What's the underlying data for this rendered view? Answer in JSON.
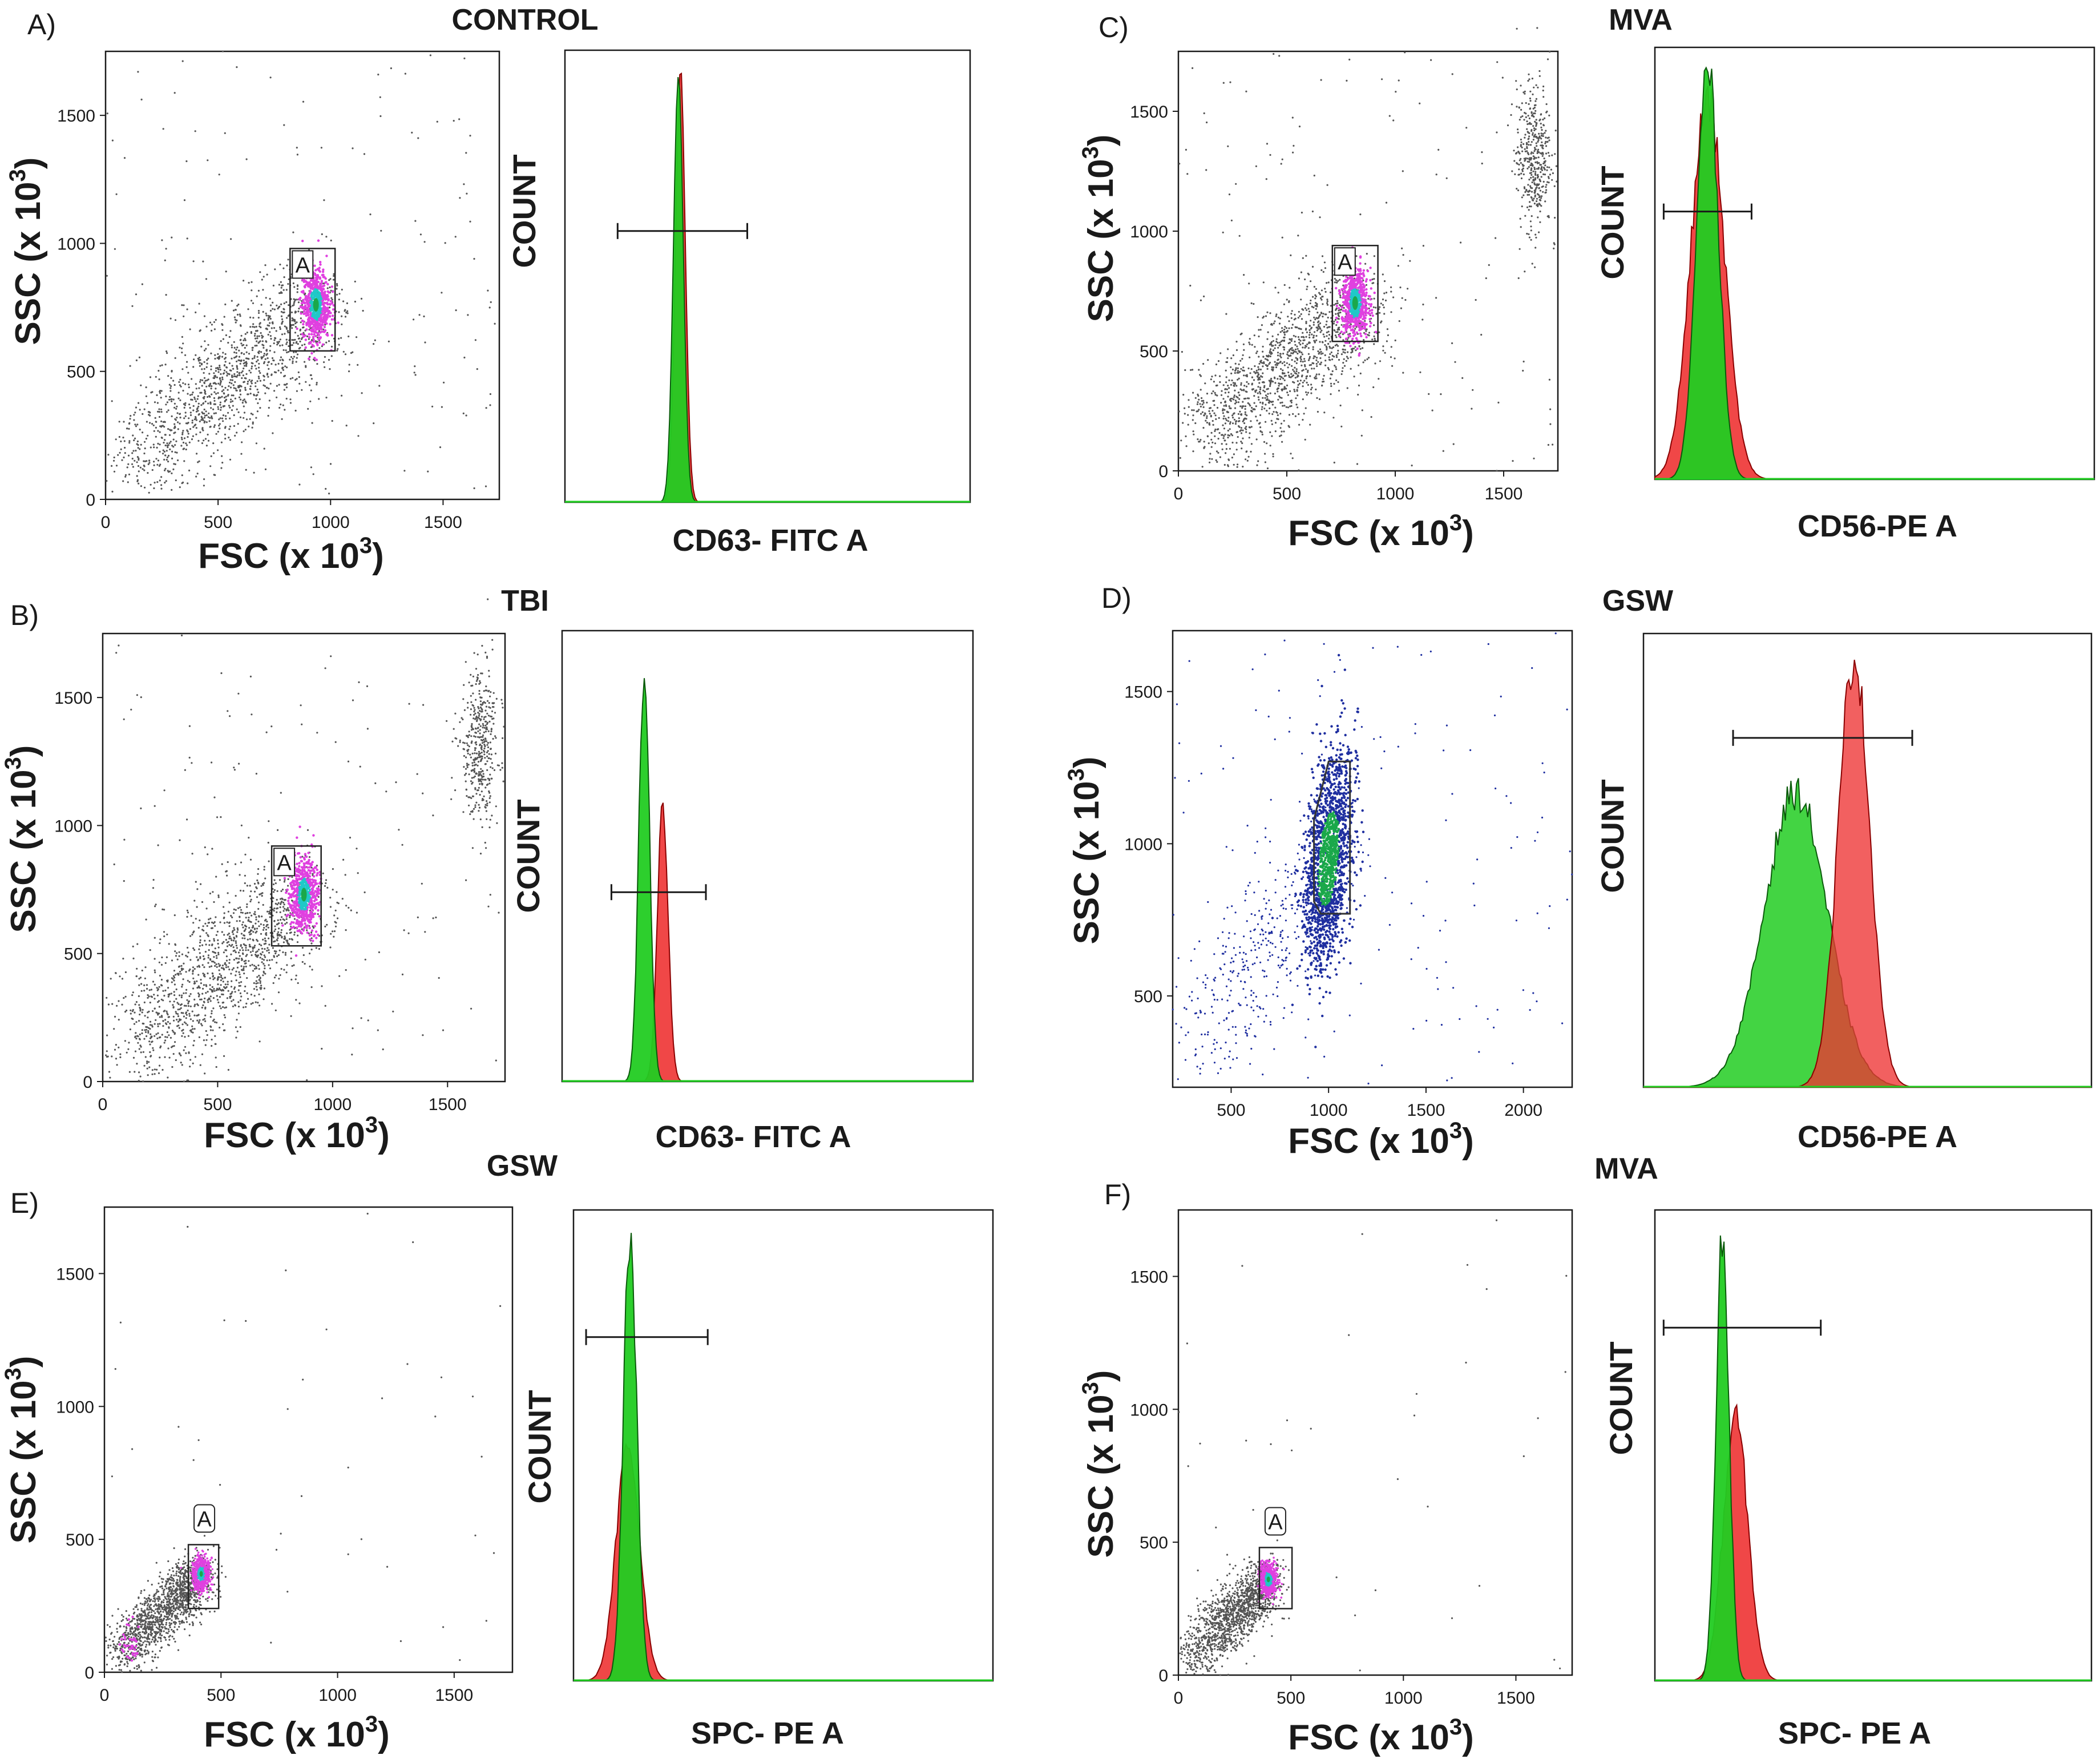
{
  "colors": {
    "background": "#ffffff",
    "axis": "#1a1a1a",
    "scatter_gray": "#555555",
    "scatter_blue": "#1f2fa0",
    "density_magenta": "#e040e0",
    "density_cyan": "#20c8c8",
    "density_green": "#1aa84a",
    "hist_green": "#22cc22",
    "hist_red": "#ee3333",
    "hist_overlap": "#d2691e"
  },
  "panels": [
    {
      "id": "A",
      "letter": "A)",
      "title": "CONTROL",
      "scatter": {
        "xlabel": "FSC (x 10",
        "ylabel": "SSC (x 10",
        "sup": "3",
        "xlim": [
          0,
          1750
        ],
        "ylim": [
          0,
          1750
        ],
        "xticks": [
          "0",
          "500",
          "1000",
          "1500"
        ],
        "yticks": [
          "0",
          "500",
          "1000",
          "1500"
        ],
        "gate": {
          "label": "A",
          "x": [
            820,
            1020
          ],
          "y": [
            580,
            980
          ]
        },
        "population_center": [
          935,
          760
        ],
        "point_color": "gray",
        "extra_cluster": false
      },
      "histogram": {
        "xlabel": "CD63- FITC A",
        "ylabel": "COUNT",
        "marker": {
          "x": [
            0.13,
            0.45
          ],
          "y": 0.6
        },
        "green": {
          "center": 0.28,
          "width": 0.012,
          "height": 0.95
        },
        "red": {
          "center": 0.285,
          "width": 0.012,
          "height": 0.96
        },
        "green_on_top": true
      }
    },
    {
      "id": "B",
      "letter": "B)",
      "title": "TBI",
      "scatter": {
        "xlabel": "FSC (x 10",
        "ylabel": "SSC (x 10",
        "sup": "3",
        "xlim": [
          0,
          1750
        ],
        "ylim": [
          0,
          1750
        ],
        "xticks": [
          "0",
          "500",
          "1000",
          "1500"
        ],
        "yticks": [
          "0",
          "500",
          "1000",
          "1500"
        ],
        "gate": {
          "label": "A",
          "x": [
            735,
            950
          ],
          "y": [
            530,
            920
          ]
        },
        "population_center": [
          875,
          730
        ],
        "point_color": "gray",
        "extra_cluster": true
      },
      "histogram": {
        "xlabel": "CD63- FITC A",
        "ylabel": "COUNT",
        "marker": {
          "x": [
            0.12,
            0.35
          ],
          "y": 0.42
        },
        "green": {
          "center": 0.2,
          "width": 0.013,
          "height": 0.93
        },
        "red": {
          "center": 0.245,
          "width": 0.013,
          "height": 0.62
        },
        "green_on_top": true
      }
    },
    {
      "id": "C",
      "letter": "C)",
      "title": "MVA",
      "scatter": {
        "xlabel": "FSC (x 10",
        "ylabel": "SSC (x 10",
        "sup": "3",
        "xlim": [
          0,
          1750
        ],
        "ylim": [
          0,
          1750
        ],
        "xticks": [
          "0",
          "500",
          "1000",
          "1500"
        ],
        "yticks": [
          "0",
          "500",
          "1000",
          "1500"
        ],
        "gate": {
          "label": "A",
          "x": [
            710,
            920
          ],
          "y": [
            540,
            940
          ]
        },
        "population_center": [
          815,
          700
        ],
        "point_color": "gray",
        "extra_cluster": true
      },
      "histogram": {
        "xlabel": "CD56-PE A",
        "ylabel": "COUNT",
        "marker": {
          "x": [
            0.02,
            0.22
          ],
          "y": 0.62
        },
        "green": {
          "center": 0.12,
          "width": 0.025,
          "height": 0.96
        },
        "red": {
          "center": 0.12,
          "width": 0.038,
          "height": 0.88
        },
        "green_on_top": true
      }
    },
    {
      "id": "D",
      "letter": "D)",
      "title": "GSW",
      "scatter": {
        "xlabel": "FSC (x 10",
        "ylabel": "SSC (x 10",
        "sup": "3",
        "xlim": [
          200,
          2250
        ],
        "ylim": [
          200,
          1700
        ],
        "xticks": [
          "500",
          "1000",
          "1500",
          "2000"
        ],
        "yticks": [
          "500",
          "1000",
          "1500"
        ],
        "gate": {
          "label": "",
          "polygon": [
            [
              925,
              1080
            ],
            [
              1000,
              1270
            ],
            [
              1110,
              1270
            ],
            [
              1110,
              770
            ],
            [
              960,
              770
            ],
            [
              925,
              810
            ]
          ]
        },
        "population_center": [
          1000,
          950
        ],
        "point_color": "blue",
        "extra_cluster": false
      },
      "histogram": {
        "xlabel": "CD56-PE A",
        "ylabel": "COUNT",
        "marker": {
          "x": [
            0.2,
            0.6
          ],
          "y": 0.77
        },
        "green": {
          "center": 0.34,
          "width": 0.07,
          "height": 0.65
        },
        "red": {
          "center": 0.47,
          "width": 0.035,
          "height": 0.95
        },
        "green_on_top": false
      }
    },
    {
      "id": "E",
      "letter": "E)",
      "title": "GSW",
      "scatter": {
        "xlabel": "FSC (x 10",
        "ylabel": "SSC (x 10",
        "sup": "3",
        "xlim": [
          0,
          1750
        ],
        "ylim": [
          0,
          1750
        ],
        "xticks": [
          "0",
          "500",
          "1000",
          "1500"
        ],
        "yticks": [
          "0",
          "500",
          "1000",
          "1500"
        ],
        "gate": {
          "label": "A",
          "x": [
            360,
            490
          ],
          "y": [
            240,
            480
          ]
        },
        "population_center": [
          415,
          370
        ],
        "point_color": "gray",
        "extra_cluster": false
      },
      "histogram": {
        "xlabel": "SPC- PE A",
        "ylabel": "COUNT",
        "marker": {
          "x": [
            0.03,
            0.32
          ],
          "y": 0.73
        },
        "green": {
          "center": 0.135,
          "width": 0.016,
          "height": 0.95
        },
        "red": {
          "center": 0.13,
          "width": 0.028,
          "height": 0.5
        },
        "green_on_top": true
      }
    },
    {
      "id": "F",
      "letter": "F)",
      "title": "MVA",
      "scatter": {
        "xlabel": "FSC (x 10",
        "ylabel": "SSC (x 10",
        "sup": "3",
        "xlim": [
          0,
          1750
        ],
        "ylim": [
          0,
          1750
        ],
        "xticks": [
          "0",
          "500",
          "1000",
          "1500"
        ],
        "yticks": [
          "0",
          "500",
          "1000",
          "1500"
        ],
        "gate": {
          "label": "A",
          "x": [
            360,
            505
          ],
          "y": [
            250,
            480
          ]
        },
        "population_center": [
          400,
          360
        ],
        "point_color": "gray",
        "extra_cluster": false
      },
      "histogram": {
        "xlabel": "SPC- PE A",
        "ylabel": "COUNT",
        "marker": {
          "x": [
            0.02,
            0.38
          ],
          "y": 0.75
        },
        "green": {
          "center": 0.155,
          "width": 0.015,
          "height": 0.95
        },
        "red": {
          "center": 0.185,
          "width": 0.028,
          "height": 0.56
        },
        "green_on_top": true
      }
    }
  ],
  "chart_data": [
    {
      "type": "scatter",
      "title": "CONTROL",
      "xlabel": "FSC (x 10^3)",
      "ylabel": "SSC (x 10^3)",
      "xlim": [
        0,
        1750
      ],
      "ylim": [
        0,
        1750
      ],
      "gate": "A"
    },
    {
      "type": "area",
      "title": "CONTROL",
      "xlabel": "CD63- FITC A",
      "ylabel": "COUNT",
      "series": [
        {
          "name": "green",
          "peak_fraction": 0.28
        },
        {
          "name": "red",
          "peak_fraction": 0.285
        }
      ]
    },
    {
      "type": "scatter",
      "title": "TBI",
      "xlabel": "FSC (x 10^3)",
      "ylabel": "SSC (x 10^3)",
      "xlim": [
        0,
        1750
      ],
      "ylim": [
        0,
        1750
      ],
      "gate": "A"
    },
    {
      "type": "area",
      "title": "TBI",
      "xlabel": "CD63- FITC A",
      "ylabel": "COUNT",
      "series": [
        {
          "name": "green",
          "peak_fraction": 0.2
        },
        {
          "name": "red",
          "peak_fraction": 0.245
        }
      ]
    },
    {
      "type": "scatter",
      "title": "MVA",
      "xlabel": "FSC (x 10^3)",
      "ylabel": "SSC (x 10^3)",
      "xlim": [
        0,
        1750
      ],
      "ylim": [
        0,
        1750
      ],
      "gate": "A"
    },
    {
      "type": "area",
      "title": "MVA",
      "xlabel": "CD56-PE A",
      "ylabel": "COUNT",
      "series": [
        {
          "name": "green",
          "peak_fraction": 0.12
        },
        {
          "name": "red",
          "peak_fraction": 0.12
        }
      ]
    },
    {
      "type": "scatter",
      "title": "GSW",
      "xlabel": "FSC (x 10^3)",
      "ylabel": "SSC (x 10^3)",
      "xlim": [
        200,
        2250
      ],
      "ylim": [
        200,
        1700
      ]
    },
    {
      "type": "area",
      "title": "GSW",
      "xlabel": "CD56-PE A",
      "ylabel": "COUNT",
      "series": [
        {
          "name": "green",
          "peak_fraction": 0.34
        },
        {
          "name": "red",
          "peak_fraction": 0.47
        }
      ]
    },
    {
      "type": "scatter",
      "title": "GSW",
      "xlabel": "FSC (x 10^3)",
      "ylabel": "SSC (x 10^3)",
      "xlim": [
        0,
        1750
      ],
      "ylim": [
        0,
        1750
      ],
      "gate": "A"
    },
    {
      "type": "area",
      "title": "GSW",
      "xlabel": "SPC- PE A",
      "ylabel": "COUNT",
      "series": [
        {
          "name": "green",
          "peak_fraction": 0.135
        },
        {
          "name": "red",
          "peak_fraction": 0.13
        }
      ]
    },
    {
      "type": "scatter",
      "title": "MVA",
      "xlabel": "FSC (x 10^3)",
      "ylabel": "SSC (x 10^3)",
      "xlim": [
        0,
        1750
      ],
      "ylim": [
        0,
        1750
      ],
      "gate": "A"
    },
    {
      "type": "area",
      "title": "MVA",
      "xlabel": "SPC- PE A",
      "ylabel": "COUNT",
      "series": [
        {
          "name": "green",
          "peak_fraction": 0.155
        },
        {
          "name": "red",
          "peak_fraction": 0.185
        }
      ]
    }
  ]
}
